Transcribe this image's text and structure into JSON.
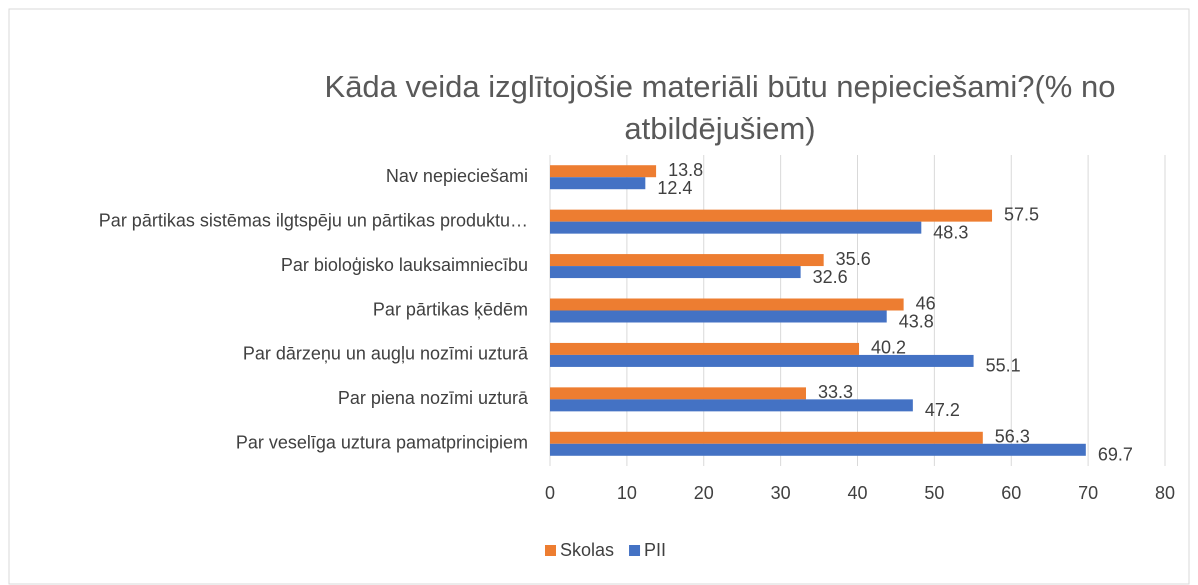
{
  "chart_data": {
    "type": "hbar",
    "title": "Kāda veida izglītojošie materiāli būtu nepieciešami?(% no atbildējušiem)",
    "categories": [
      "Nav nepieciešami",
      "Par pārtikas sistēmas ilgtspēju un pārtikas produktu…",
      "Par bioloģisko lauksaimniecību",
      "Par pārtikas ķēdēm",
      "Par dārzeņu un augļu nozīmi uzturā",
      "Par piena nozīmi uzturā",
      "Par veselīga uztura pamatprincipiem"
    ],
    "series": [
      {
        "name": "Skolas",
        "color": "#ED7D31",
        "values": [
          13.8,
          57.5,
          35.6,
          46,
          40.2,
          33.3,
          56.3
        ]
      },
      {
        "name": "PII",
        "color": "#4472C4",
        "values": [
          12.4,
          48.3,
          32.6,
          43.8,
          55.1,
          47.2,
          69.7
        ]
      }
    ],
    "xlim": [
      0,
      80
    ],
    "xticks": [
      0,
      10,
      20,
      30,
      40,
      50,
      60,
      70,
      80
    ],
    "grid": true,
    "legend": "bottom"
  }
}
